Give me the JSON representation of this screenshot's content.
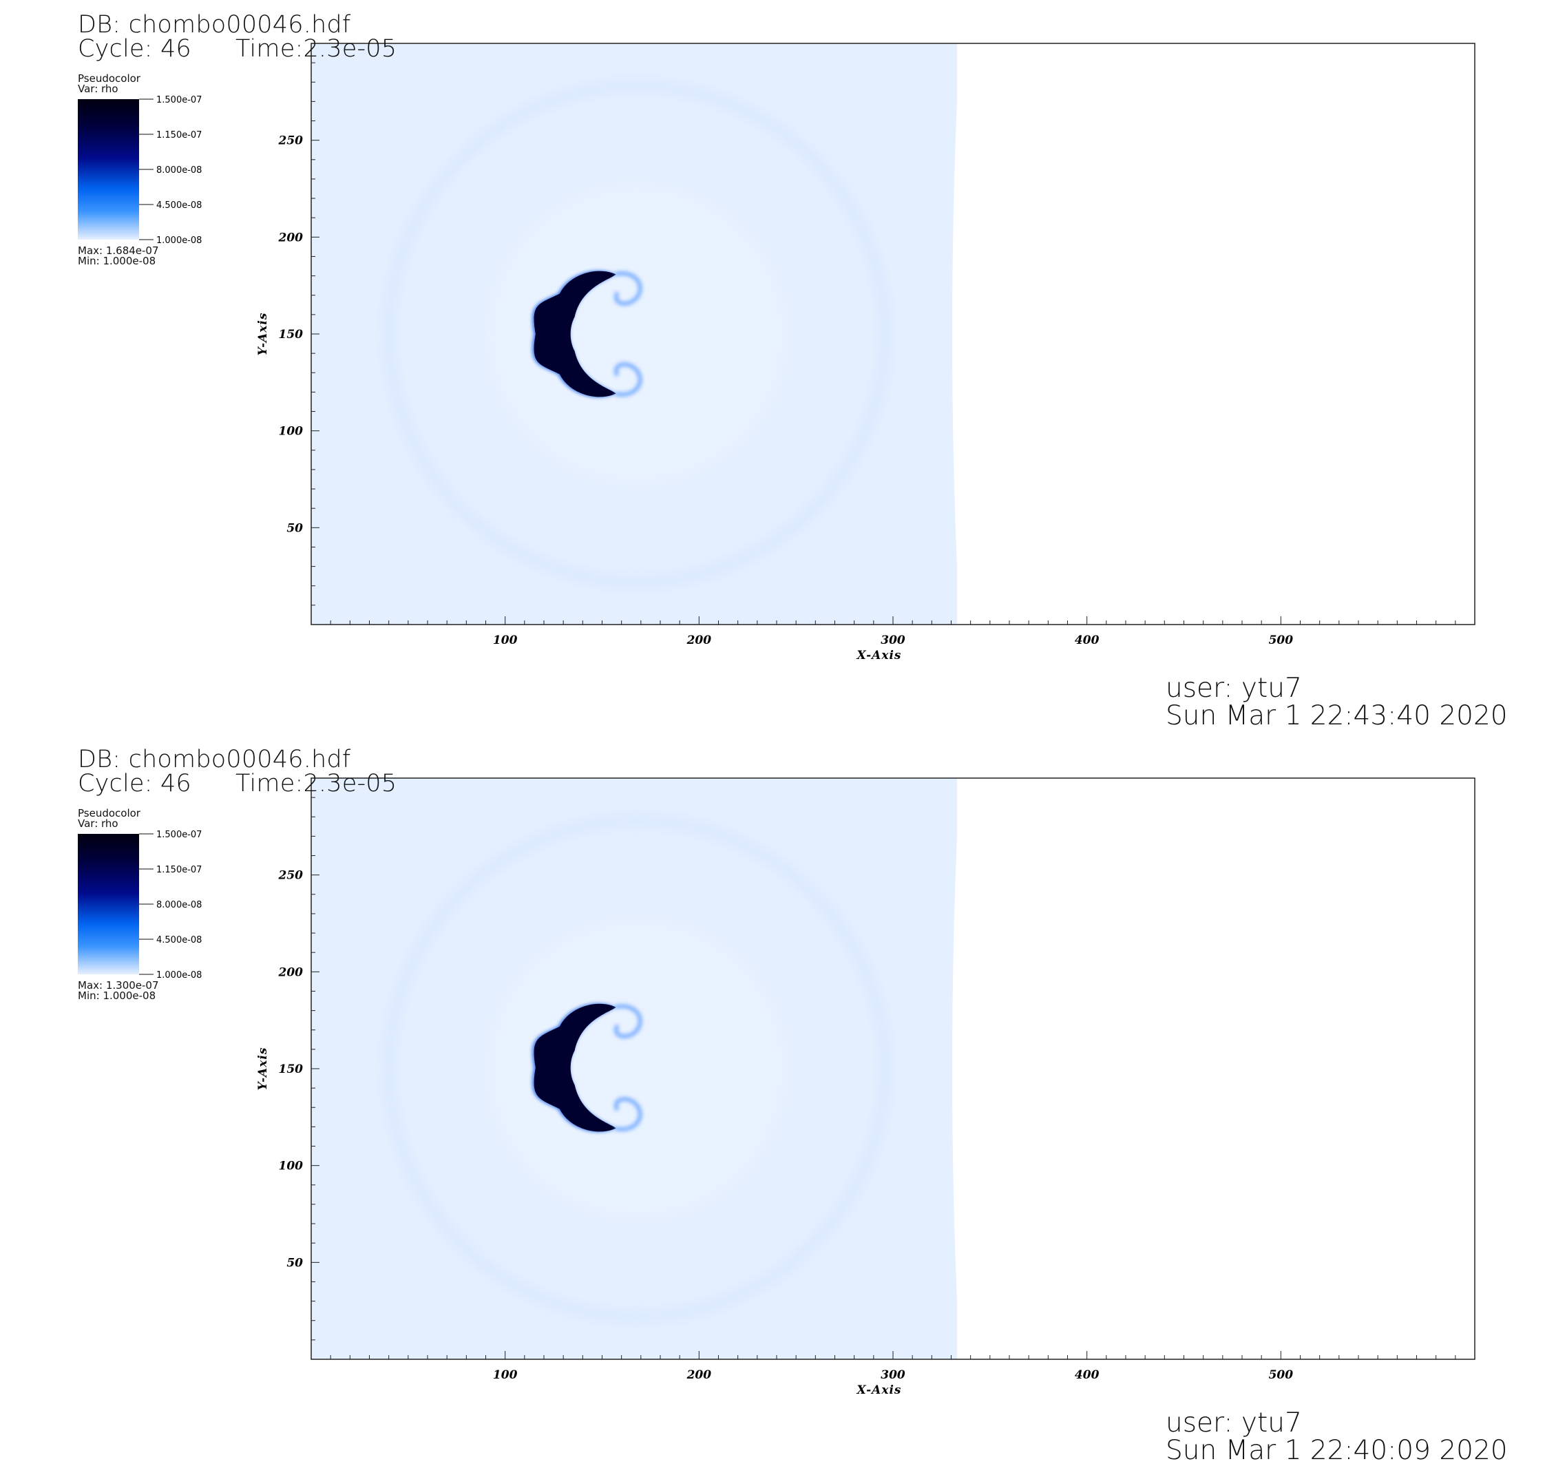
{
  "colors": {
    "background_field": "#e4efff",
    "blob": "#00002e",
    "blob_edge": "#0a55e0",
    "frame": "#222222"
  },
  "plots": [
    {
      "db_line": "DB: chombo00046.hdf",
      "cycle_line": "Cycle: 46",
      "time_line": "Time:2.3e-05",
      "legend": {
        "plot_type": "Pseudocolor",
        "var": "Var: rho",
        "ticks": [
          "1.500e-07",
          "1.150e-07",
          "8.000e-08",
          "4.500e-08",
          "1.000e-08"
        ],
        "max": "Max:  1.684e-07",
        "min": "Min:  1.000e-08"
      },
      "user": "user: ytu7",
      "timestamp": "Sun Mar  1 22:43:40 2020"
    },
    {
      "db_line": "DB: chombo00046.hdf",
      "cycle_line": "Cycle: 46",
      "time_line": "Time:2.3e-05",
      "legend": {
        "plot_type": "Pseudocolor",
        "var": "Var: rho",
        "ticks": [
          "1.500e-07",
          "1.150e-07",
          "8.000e-08",
          "4.500e-08",
          "1.000e-08"
        ],
        "max": "Max:  1.300e-07",
        "min": "Min:  1.000e-08"
      },
      "user": "user: ytu7",
      "timestamp": "Sun Mar  1 22:40:09 2020"
    }
  ],
  "chart_data": [
    {
      "type": "heatmap",
      "title": "",
      "xlabel": "X-Axis",
      "ylabel": "Y-Axis",
      "xlim": [
        0,
        600
      ],
      "ylim": [
        0,
        300
      ],
      "x_ticks": [
        "100",
        "200",
        "300",
        "400",
        "500"
      ],
      "y_ticks": [
        "50",
        "100",
        "150",
        "200",
        "250"
      ],
      "variable": "rho",
      "colorbar_range": [
        1e-08,
        1.5e-07
      ],
      "data_max": 1.684e-07,
      "data_min": 1e-08,
      "field_extent_x": [
        0,
        333
      ],
      "shock_circle": {
        "center": [
          168,
          150
        ],
        "radius": 128
      },
      "dense_blob_x": [
        115,
        160
      ],
      "dense_blob_y": [
        115,
        185
      ]
    },
    {
      "type": "heatmap",
      "title": "",
      "xlabel": "X-Axis",
      "ylabel": "Y-Axis",
      "xlim": [
        0,
        600
      ],
      "ylim": [
        0,
        300
      ],
      "x_ticks": [
        "100",
        "200",
        "300",
        "400",
        "500"
      ],
      "y_ticks": [
        "50",
        "100",
        "150",
        "200",
        "250"
      ],
      "variable": "rho",
      "colorbar_range": [
        1e-08,
        1.5e-07
      ],
      "data_max": 1.3e-07,
      "data_min": 1e-08,
      "field_extent_x": [
        0,
        333
      ],
      "shock_circle": {
        "center": [
          168,
          150
        ],
        "radius": 128
      },
      "dense_blob_x": [
        115,
        160
      ],
      "dense_blob_y": [
        115,
        186
      ]
    }
  ]
}
